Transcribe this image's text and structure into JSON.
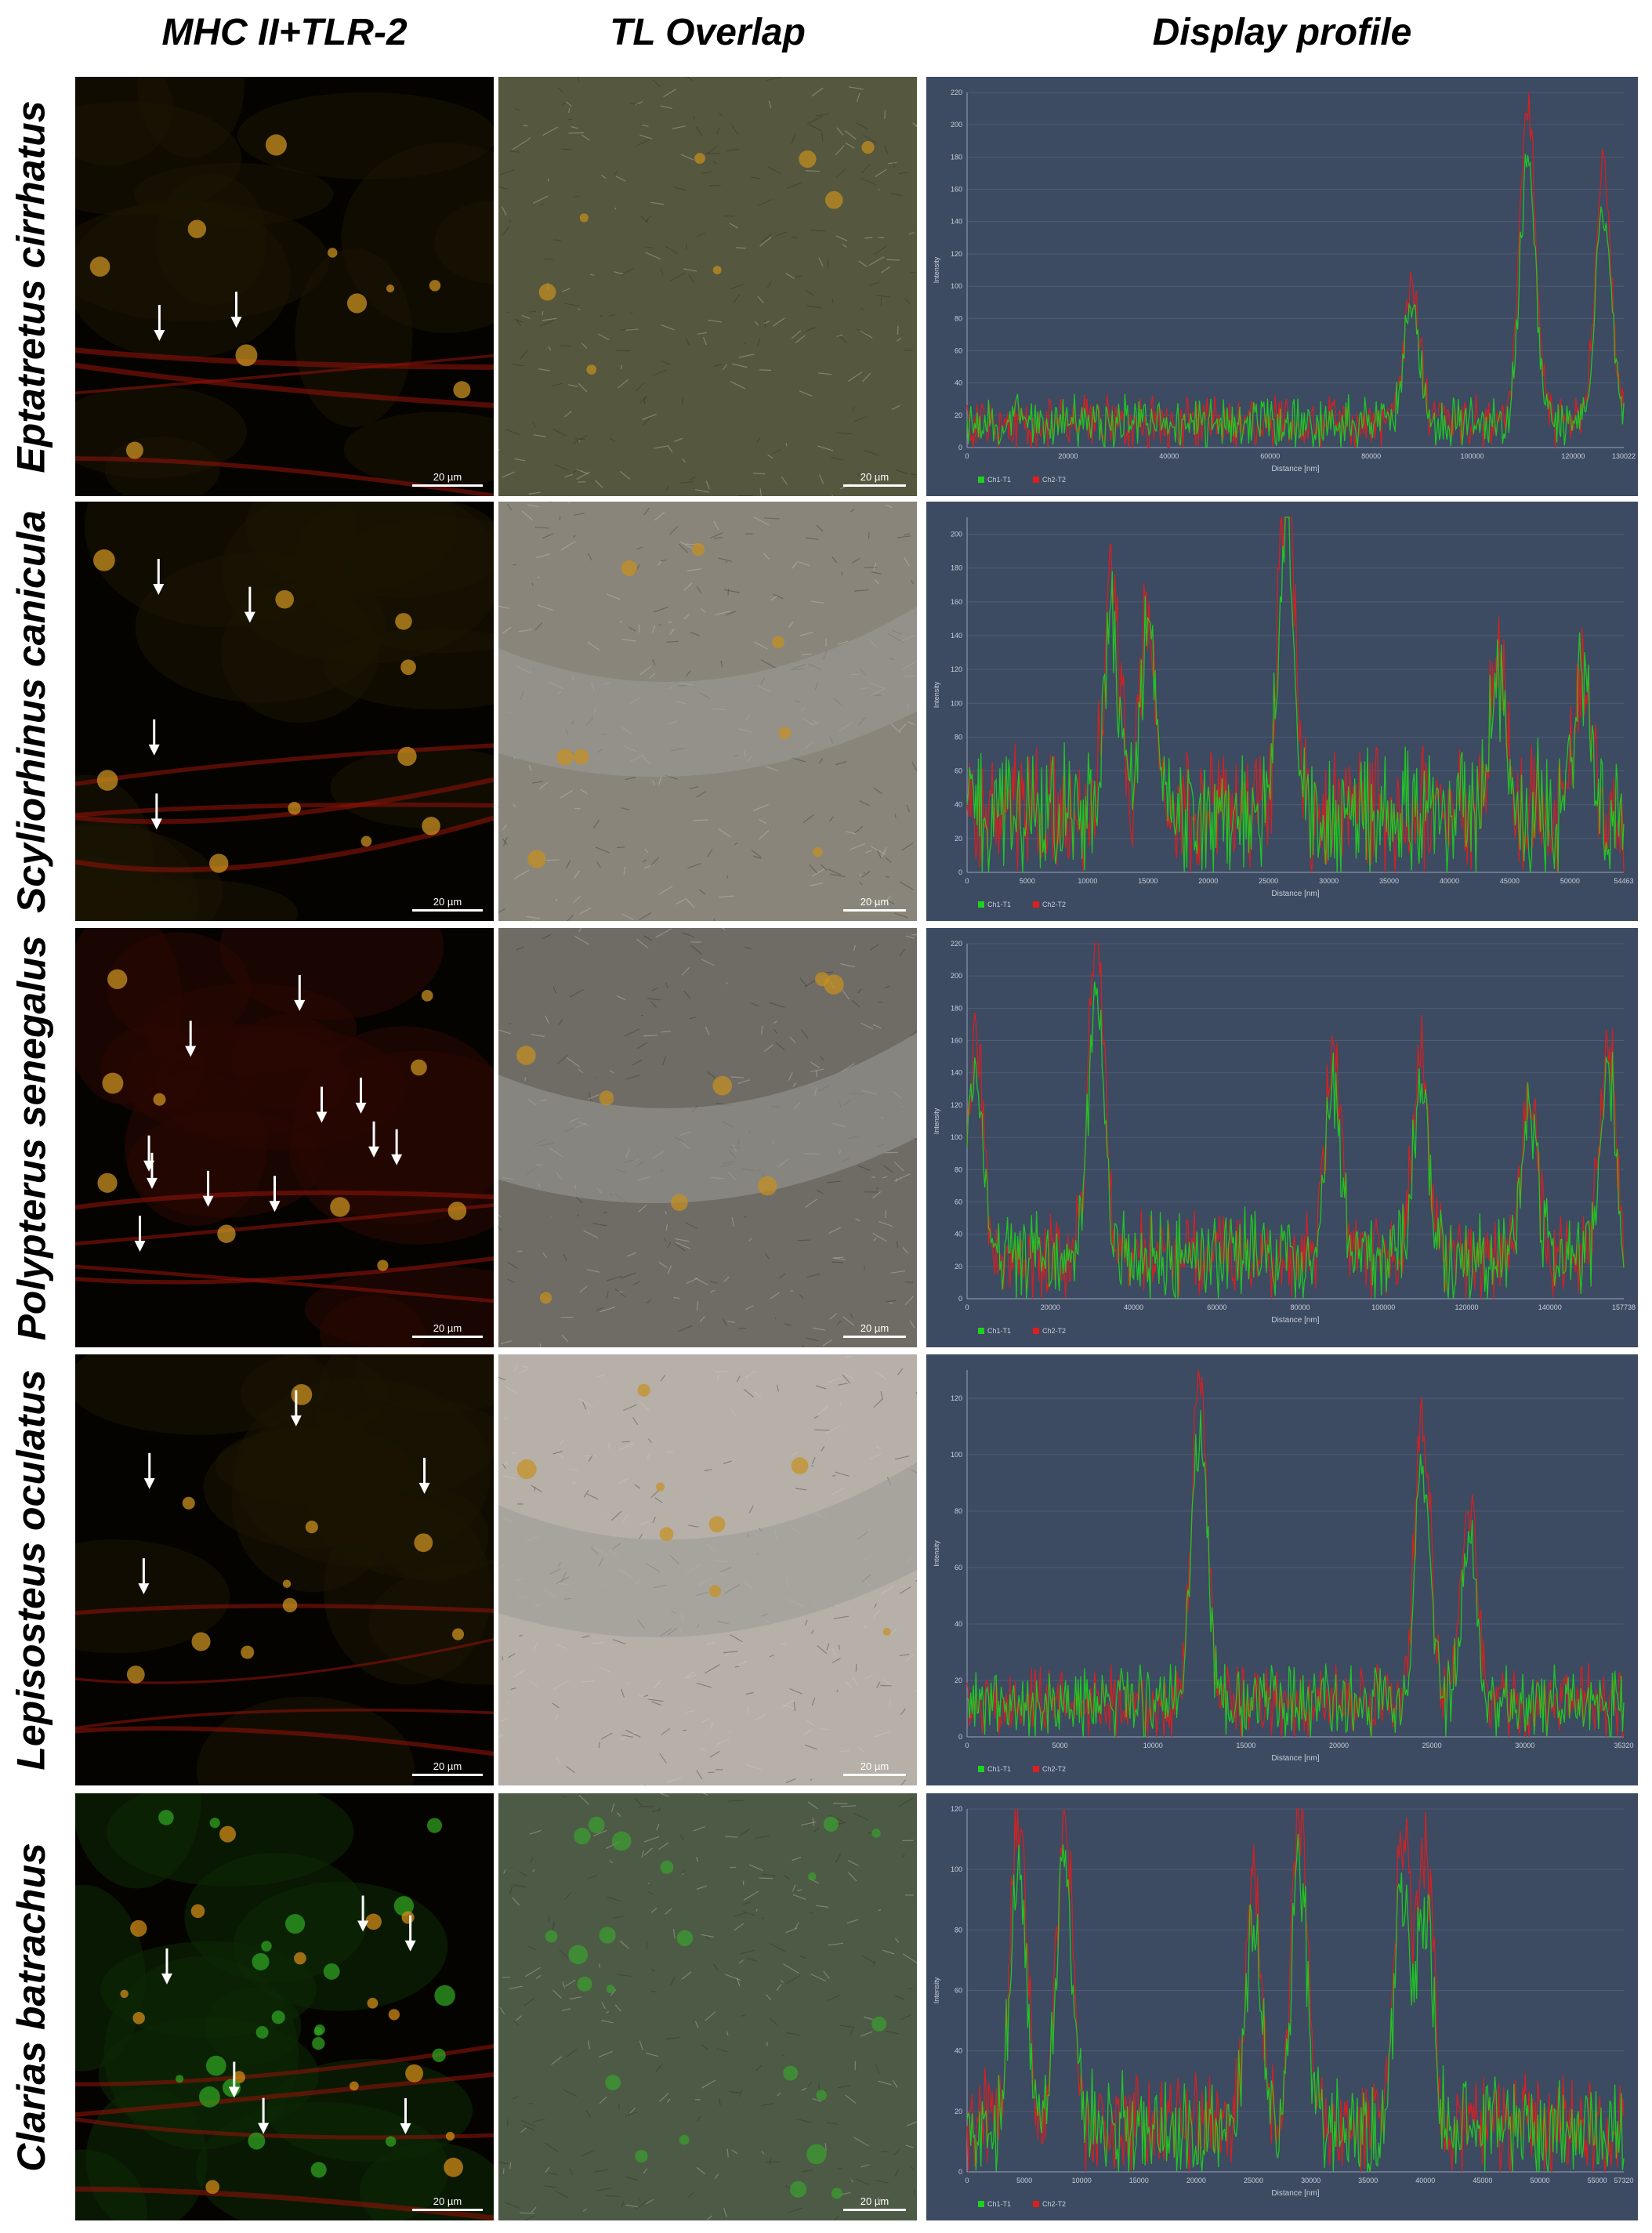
{
  "columns": {
    "fluorescence": "MHC II+TLR-2",
    "overlap": "TL Overlap",
    "profile": "Display profile"
  },
  "rows": [
    {
      "species": "Eptatretus cirrhatus",
      "scale_fluor": "20 µm",
      "scale_tl": "20 µm",
      "arrows": 2,
      "chart": {
        "xmax": 130022,
        "ymax": 220
      }
    },
    {
      "species": "Scyliorhinus canicula",
      "scale_fluor": "20 µm",
      "scale_tl": "20 µm",
      "arrows": 4,
      "chart": {
        "xmax": 54463,
        "ymax": 210
      }
    },
    {
      "species": "Polypterus senegalus",
      "scale_fluor": "20 µm",
      "scale_tl": "20 µm",
      "arrows": 11,
      "chart": {
        "xmax": 157738,
        "ymax": 220
      }
    },
    {
      "species": "Lepisosteus oculatus",
      "scale_fluor": "20 µm",
      "scale_tl": "20 µm",
      "arrows": 4,
      "chart": {
        "xmax": 35320,
        "ymax": 130
      }
    },
    {
      "species": "Clarias batrachus",
      "scale_fluor": "20 µm",
      "scale_tl": "20 µm",
      "arrows": 6,
      "chart": {
        "xmax": 57320,
        "ymax": 120
      }
    }
  ],
  "chart_data": [
    {
      "type": "line",
      "x_label": "Distance [nm]",
      "y_label": "Intensity",
      "xlim": [
        0,
        130022
      ],
      "ylim": [
        0,
        220
      ],
      "x_ticks": [
        0,
        20000,
        40000,
        60000,
        80000,
        100000,
        120000,
        130022
      ],
      "y_ticks": [
        0,
        20,
        40,
        60,
        80,
        100,
        120,
        140,
        160,
        180,
        200,
        220
      ],
      "series": [
        {
          "name": "Ch1-T1",
          "color": "#1fd11f"
        },
        {
          "name": "Ch2-T2",
          "color": "#e01e1e"
        }
      ],
      "peaks": [
        [
          88000,
          85
        ],
        [
          111000,
          200
        ],
        [
          126000,
          160
        ]
      ],
      "baseline": 15
    },
    {
      "type": "line",
      "x_label": "Distance [nm]",
      "y_label": "Intensity",
      "xlim": [
        0,
        54463
      ],
      "ylim": [
        0,
        210
      ],
      "x_ticks": [
        0,
        5000,
        10000,
        15000,
        20000,
        25000,
        30000,
        35000,
        40000,
        45000,
        50000,
        54463
      ],
      "y_ticks": [
        0,
        20,
        40,
        60,
        80,
        100,
        120,
        140,
        160,
        180,
        200
      ],
      "series": [
        {
          "name": "Ch1-T1",
          "color": "#1fd11f"
        },
        {
          "name": "Ch2-T2",
          "color": "#e01e1e"
        }
      ],
      "peaks": [
        [
          12000,
          140
        ],
        [
          15000,
          120
        ],
        [
          26500,
          200
        ],
        [
          44000,
          100
        ],
        [
          51000,
          90
        ]
      ],
      "baseline": 35
    },
    {
      "type": "line",
      "x_label": "Distance [nm]",
      "y_label": "Intensity",
      "xlim": [
        0,
        157738
      ],
      "ylim": [
        0,
        220
      ],
      "x_ticks": [
        0,
        20000,
        40000,
        60000,
        80000,
        100000,
        120000,
        140000,
        157738
      ],
      "y_ticks": [
        0,
        20,
        40,
        60,
        80,
        100,
        120,
        140,
        160,
        180,
        200,
        220
      ],
      "series": [
        {
          "name": "Ch1-T1",
          "color": "#1fd11f"
        },
        {
          "name": "Ch2-T2",
          "color": "#e01e1e"
        }
      ],
      "peaks": [
        [
          2000,
          140
        ],
        [
          31000,
          200
        ],
        [
          88000,
          130
        ],
        [
          109000,
          130
        ],
        [
          135000,
          110
        ],
        [
          154000,
          140
        ]
      ],
      "baseline": 25
    },
    {
      "type": "line",
      "x_label": "Distance [nm]",
      "y_label": "Intensity",
      "xlim": [
        0,
        35320
      ],
      "ylim": [
        0,
        130
      ],
      "x_ticks": [
        0,
        5000,
        10000,
        15000,
        20000,
        25000,
        30000,
        35320
      ],
      "y_ticks": [
        0,
        20,
        40,
        60,
        80,
        100,
        120
      ],
      "series": [
        {
          "name": "Ch1-T1",
          "color": "#1fd11f"
        },
        {
          "name": "Ch2-T2",
          "color": "#e01e1e"
        }
      ],
      "peaks": [
        [
          12500,
          115
        ],
        [
          24500,
          100
        ],
        [
          27000,
          70
        ]
      ],
      "baseline": 12
    },
    {
      "type": "line",
      "x_label": "Distance [nm]",
      "y_label": "Intensity",
      "xlim": [
        0,
        57320
      ],
      "ylim": [
        0,
        120
      ],
      "x_ticks": [
        0,
        5000,
        10000,
        15000,
        20000,
        25000,
        30000,
        35000,
        40000,
        45000,
        50000,
        55000,
        57320
      ],
      "y_ticks": [
        0,
        20,
        40,
        60,
        80,
        100,
        120
      ],
      "series": [
        {
          "name": "Ch1-T1",
          "color": "#1fd11f"
        },
        {
          "name": "Ch2-T2",
          "color": "#e01e1e"
        }
      ],
      "peaks": [
        [
          4500,
          105
        ],
        [
          8500,
          100
        ],
        [
          25000,
          85
        ],
        [
          29000,
          108
        ],
        [
          38000,
          95
        ],
        [
          40000,
          90
        ]
      ],
      "baseline": 15
    }
  ]
}
